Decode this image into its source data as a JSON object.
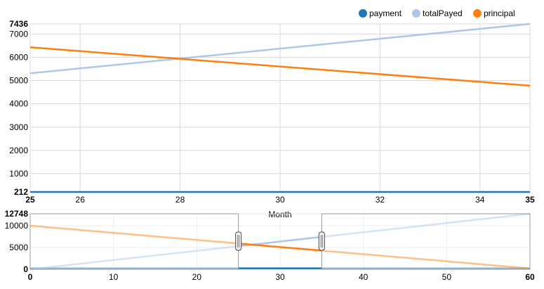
{
  "legend": {
    "items": [
      {
        "label": "payment",
        "color": "#1f77b4"
      },
      {
        "label": "totalPayed",
        "color": "#aec7e8"
      },
      {
        "label": "principal",
        "color": "#ff7f0e"
      }
    ]
  },
  "chart_data": [
    {
      "type": "line",
      "role": "focus",
      "xlabel": "Month",
      "xlim": [
        25,
        35
      ],
      "ylim": [
        212,
        7436
      ],
      "x_ticks": [
        26,
        28,
        30,
        32,
        34
      ],
      "x_extent_labels": [
        "25",
        "35"
      ],
      "y_ticks": [
        1000,
        2000,
        3000,
        4000,
        5000,
        6000,
        7000
      ],
      "y_extent_labels": [
        "212",
        "7436"
      ],
      "grid": true,
      "legend_position": "top-right",
      "series": [
        {
          "name": "payment",
          "color": "#1f77b4",
          "x": [
            25,
            35
          ],
          "y": [
            212,
            212
          ]
        },
        {
          "name": "totalPayed",
          "color": "#aec7e8",
          "x": [
            25,
            35
          ],
          "y": [
            5311,
            7436
          ]
        },
        {
          "name": "principal",
          "color": "#ff7f0e",
          "x": [
            25,
            35
          ],
          "y": [
            6430,
            4780
          ]
        }
      ]
    },
    {
      "type": "line",
      "role": "context",
      "xlim": [
        0,
        60
      ],
      "ylim": [
        0,
        12748
      ],
      "x_ticks": [
        10,
        20,
        30,
        40,
        50
      ],
      "x_extent_labels": [
        "0",
        "60"
      ],
      "y_ticks": [
        5000,
        10000
      ],
      "y_extent_labels": [
        "0",
        "12748"
      ],
      "brush_extent": [
        25,
        35
      ],
      "series": [
        {
          "name": "payment",
          "color": "#1f77b4",
          "x": [
            0,
            60
          ],
          "y": [
            212,
            212
          ]
        },
        {
          "name": "totalPayed",
          "color": "#aec7e8",
          "x": [
            0,
            60
          ],
          "y": [
            0,
            12748
          ]
        },
        {
          "name": "principal",
          "color": "#ff7f0e",
          "x": [
            0,
            60
          ],
          "y": [
            10000,
            212
          ]
        }
      ]
    }
  ]
}
